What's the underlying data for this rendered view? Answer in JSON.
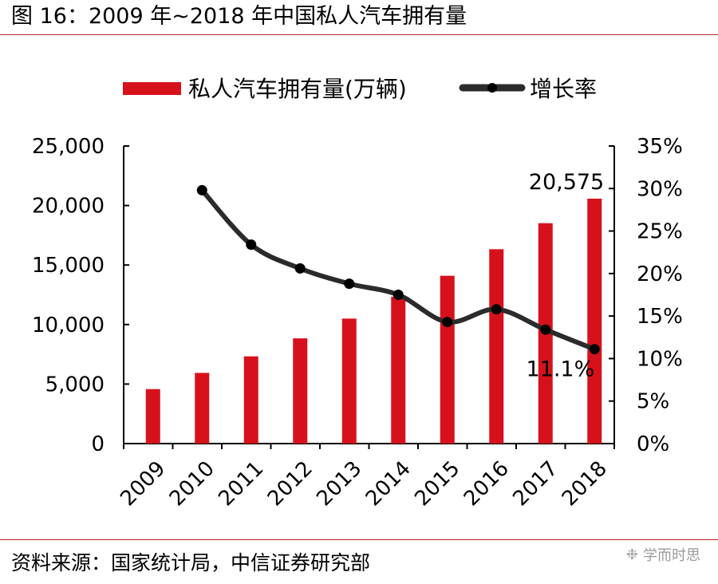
{
  "figure": {
    "title": "图 16：2009 年~2018 年中国私人汽车拥有量",
    "source": "资料来源：国家统计局，中信证券研究部",
    "watermark": "学而时思",
    "watermark_icon": "wechat-icon"
  },
  "colors": {
    "bar": "#d7111b",
    "line": "#2b2b2b",
    "rule": "#c0202a"
  },
  "chart_data": {
    "type": "bar",
    "categories": [
      "2009",
      "2010",
      "2011",
      "2012",
      "2013",
      "2014",
      "2015",
      "2016",
      "2017",
      "2018"
    ],
    "series": [
      {
        "name": "私人汽车拥有量(万辆)",
        "kind": "bar",
        "axis": "left",
        "values": [
          4575,
          5939,
          7327,
          8839,
          10502,
          12339,
          14099,
          16330,
          18515,
          20575
        ]
      },
      {
        "name": "增长率",
        "kind": "line",
        "axis": "right",
        "values": [
          null,
          29.8,
          23.4,
          20.6,
          18.8,
          17.5,
          14.3,
          15.8,
          13.4,
          11.1
        ]
      }
    ],
    "y_left": {
      "lim": [
        0,
        25000
      ],
      "ticks": [
        0,
        5000,
        10000,
        15000,
        20000,
        25000
      ],
      "tick_labels": [
        "0",
        "5,000",
        "10,000",
        "15,000",
        "20,000",
        "25,000"
      ]
    },
    "y_right": {
      "lim": [
        0,
        35
      ],
      "ticks": [
        0,
        5,
        10,
        15,
        20,
        25,
        30,
        35
      ],
      "tick_labels": [
        "0%",
        "5%",
        "10%",
        "15%",
        "20%",
        "25%",
        "30%",
        "35%"
      ]
    },
    "annotations": [
      {
        "text": "20,575",
        "series": 0,
        "index": 9
      },
      {
        "text": "11.1%",
        "series": 1,
        "index": 9
      }
    ],
    "legend": "top",
    "grid": false,
    "x_tick_rotation": "diagonal"
  }
}
